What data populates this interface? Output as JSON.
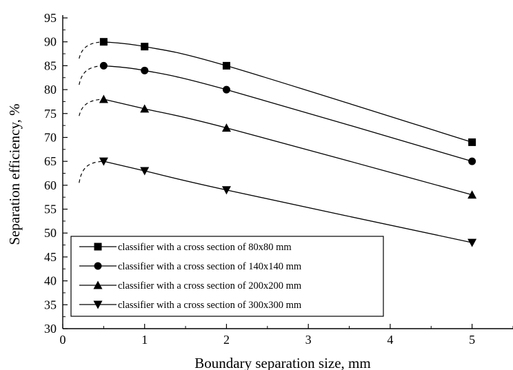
{
  "chart_data": {
    "type": "line",
    "title": "",
    "xlabel": "Boundary separation size, mm",
    "ylabel": "Separation efficiency, %",
    "xlim": [
      0,
      5.5
    ],
    "ylim": [
      30,
      95
    ],
    "x_ticks": [
      0,
      1,
      2,
      3,
      4,
      5
    ],
    "y_ticks": [
      30,
      35,
      40,
      45,
      50,
      55,
      60,
      65,
      70,
      75,
      80,
      85,
      90,
      95
    ],
    "grid": false,
    "legend_position": "bottom-left",
    "series": [
      {
        "name": "classifier with a cross section of 80x80 mm",
        "marker": "square",
        "x": [
          0.5,
          1,
          2,
          5
        ],
        "y": [
          90,
          89,
          85,
          69
        ],
        "dashed_start": [
          0.2,
          86.5
        ]
      },
      {
        "name": "classifier with a cross section of 140x140 mm",
        "marker": "circle",
        "x": [
          0.5,
          1,
          2,
          5
        ],
        "y": [
          85,
          84,
          80,
          65
        ],
        "dashed_start": [
          0.2,
          81
        ]
      },
      {
        "name": "classifier with a cross section of 200x200 mm",
        "marker": "triangle-up",
        "x": [
          0.5,
          1,
          2,
          5
        ],
        "y": [
          78,
          76,
          72,
          58
        ],
        "dashed_start": [
          0.2,
          74.5
        ]
      },
      {
        "name": "classifier with a cross section of 300x300 mm",
        "marker": "triangle-down",
        "x": [
          0.5,
          1,
          2,
          5
        ],
        "y": [
          65,
          63,
          59,
          48
        ],
        "dashed_start": [
          0.2,
          60.5
        ]
      }
    ]
  }
}
